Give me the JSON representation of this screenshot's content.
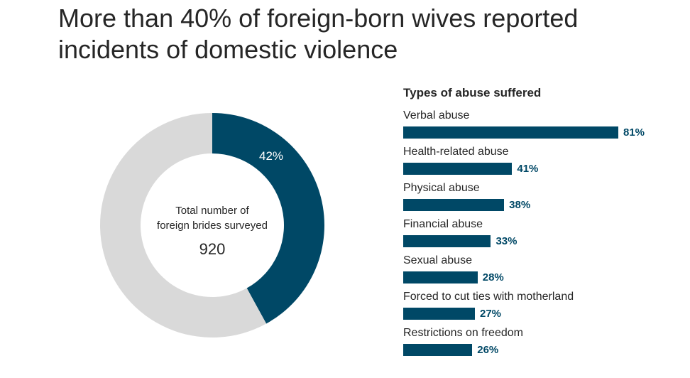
{
  "title": "More than 40% of foreign-born wives reported incidents of domestic violence",
  "chart_data": [
    {
      "type": "pie",
      "variant": "donut",
      "slices": [
        {
          "label": "42%",
          "value": 42,
          "color": "#004866"
        },
        {
          "value": 58,
          "color": "#d9d9d9"
        }
      ],
      "center_text": "Total number of foreign brides surveyed",
      "center_value": "920"
    },
    {
      "type": "bar",
      "orientation": "horizontal",
      "title": "Types of abuse suffered",
      "categories": [
        "Verbal abuse",
        "Health-related abuse",
        "Physical abuse",
        "Financial abuse",
        "Sexual abuse",
        "Forced to cut ties with motherland",
        "Restrictions on freedom"
      ],
      "values": [
        81,
        41,
        38,
        33,
        28,
        27,
        26
      ],
      "value_labels": [
        "81%",
        "41%",
        "38%",
        "33%",
        "28%",
        "27%",
        "26%"
      ],
      "color": "#004866",
      "grid": false
    }
  ]
}
